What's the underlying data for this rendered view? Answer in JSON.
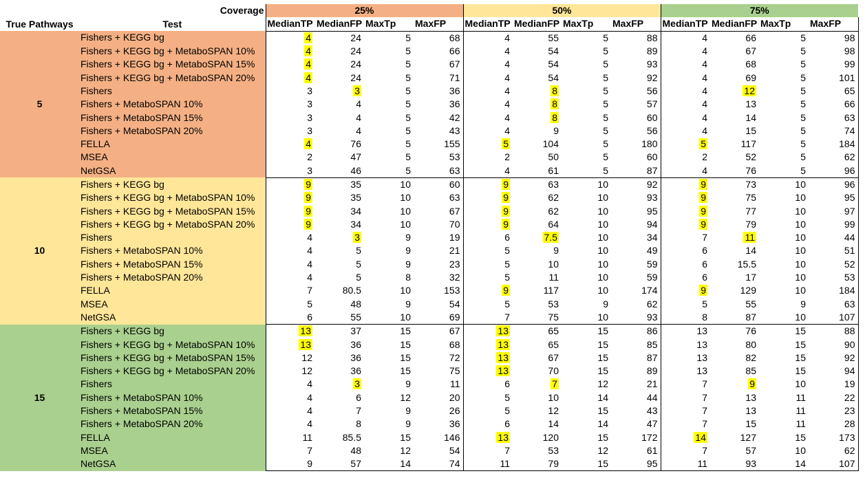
{
  "coverage_label": "Coverage",
  "coverages": [
    "25%",
    "50%",
    "75%"
  ],
  "col_true_pathways": "True Pathways",
  "col_test": "Test",
  "metric_headers": [
    "MedianTP",
    "MedianFP",
    "MaxTp",
    "MaxFP"
  ],
  "colors": {
    "c25": "#f4b084",
    "c50": "#ffe699",
    "c75": "#a9d08e",
    "highlight": "#ffff00"
  },
  "groups": [
    {
      "label": "5",
      "color": "#f4b084",
      "rows": [
        {
          "test": "Fishers + KEGG bg",
          "v": [
            "4",
            "24",
            "5",
            "68",
            "4",
            "55",
            "5",
            "88",
            "4",
            "66",
            "5",
            "98"
          ],
          "h": [
            0
          ]
        },
        {
          "test": "Fishers + KEGG bg + MetaboSPAN 10%",
          "v": [
            "4",
            "24",
            "5",
            "66",
            "4",
            "54",
            "5",
            "89",
            "4",
            "67",
            "5",
            "98"
          ],
          "h": [
            0
          ]
        },
        {
          "test": "Fishers + KEGG bg + MetaboSPAN 15%",
          "v": [
            "4",
            "24",
            "5",
            "67",
            "4",
            "54",
            "5",
            "93",
            "4",
            "68",
            "5",
            "99"
          ],
          "h": [
            0
          ]
        },
        {
          "test": "Fishers + KEGG bg + MetaboSPAN 20%",
          "v": [
            "4",
            "24",
            "5",
            "71",
            "4",
            "54",
            "5",
            "92",
            "4",
            "69",
            "5",
            "101"
          ],
          "h": [
            0
          ]
        },
        {
          "test": "Fishers",
          "v": [
            "3",
            "3",
            "5",
            "36",
            "4",
            "8",
            "5",
            "56",
            "4",
            "12",
            "5",
            "65"
          ],
          "h": [
            1,
            5,
            9
          ]
        },
        {
          "test": "Fishers + MetaboSPAN 10%",
          "v": [
            "3",
            "4",
            "5",
            "36",
            "4",
            "8",
            "5",
            "57",
            "4",
            "13",
            "5",
            "66"
          ],
          "h": [
            5
          ]
        },
        {
          "test": "Fishers + MetaboSPAN 15%",
          "v": [
            "3",
            "4",
            "5",
            "42",
            "4",
            "8",
            "5",
            "60",
            "4",
            "14",
            "5",
            "63"
          ],
          "h": [
            5
          ]
        },
        {
          "test": "Fishers + MetaboSPAN 20%",
          "v": [
            "3",
            "4",
            "5",
            "43",
            "4",
            "9",
            "5",
            "56",
            "4",
            "15",
            "5",
            "74"
          ],
          "h": []
        },
        {
          "test": "FELLA",
          "v": [
            "4",
            "76",
            "5",
            "155",
            "5",
            "104",
            "5",
            "180",
            "5",
            "117",
            "5",
            "184"
          ],
          "h": [
            0,
            4,
            8
          ]
        },
        {
          "test": "MSEA",
          "v": [
            "2",
            "47",
            "5",
            "53",
            "2",
            "50",
            "5",
            "60",
            "2",
            "52",
            "5",
            "62"
          ],
          "h": []
        },
        {
          "test": "NetGSA",
          "v": [
            "3",
            "46",
            "5",
            "63",
            "4",
            "61",
            "5",
            "87",
            "4",
            "76",
            "5",
            "96"
          ],
          "h": []
        }
      ]
    },
    {
      "label": "10",
      "color": "#ffe699",
      "rows": [
        {
          "test": "Fishers + KEGG bg",
          "v": [
            "9",
            "35",
            "10",
            "60",
            "9",
            "63",
            "10",
            "92",
            "9",
            "73",
            "10",
            "96"
          ],
          "h": [
            0,
            4,
            8
          ]
        },
        {
          "test": "Fishers + KEGG bg + MetaboSPAN 10%",
          "v": [
            "9",
            "35",
            "10",
            "63",
            "9",
            "62",
            "10",
            "93",
            "9",
            "75",
            "10",
            "95"
          ],
          "h": [
            0,
            4,
            8
          ]
        },
        {
          "test": "Fishers + KEGG bg + MetaboSPAN 15%",
          "v": [
            "9",
            "34",
            "10",
            "67",
            "9",
            "62",
            "10",
            "95",
            "9",
            "77",
            "10",
            "97"
          ],
          "h": [
            0,
            4,
            8
          ]
        },
        {
          "test": "Fishers + KEGG bg + MetaboSPAN 20%",
          "v": [
            "9",
            "34",
            "10",
            "70",
            "9",
            "64",
            "10",
            "94",
            "9",
            "79",
            "10",
            "99"
          ],
          "h": [
            0,
            4,
            8
          ]
        },
        {
          "test": "Fishers",
          "v": [
            "4",
            "3",
            "9",
            "19",
            "6",
            "7.5",
            "10",
            "34",
            "7",
            "11",
            "10",
            "44"
          ],
          "h": [
            1,
            5,
            9
          ]
        },
        {
          "test": "Fishers + MetaboSPAN 10%",
          "v": [
            "4",
            "5",
            "9",
            "21",
            "5",
            "9",
            "10",
            "49",
            "6",
            "14",
            "10",
            "51"
          ],
          "h": []
        },
        {
          "test": "Fishers + MetaboSPAN 15%",
          "v": [
            "4",
            "5",
            "9",
            "23",
            "5",
            "10",
            "10",
            "59",
            "6",
            "15.5",
            "10",
            "52"
          ],
          "h": []
        },
        {
          "test": "Fishers + MetaboSPAN 20%",
          "v": [
            "4",
            "5",
            "8",
            "32",
            "5",
            "11",
            "10",
            "59",
            "6",
            "17",
            "10",
            "53"
          ],
          "h": []
        },
        {
          "test": "FELLA",
          "v": [
            "7",
            "80.5",
            "10",
            "153",
            "9",
            "117",
            "10",
            "174",
            "9",
            "129",
            "10",
            "184"
          ],
          "h": [
            4,
            8
          ]
        },
        {
          "test": "MSEA",
          "v": [
            "5",
            "48",
            "9",
            "54",
            "5",
            "53",
            "9",
            "62",
            "5",
            "55",
            "9",
            "63"
          ],
          "h": []
        },
        {
          "test": "NetGSA",
          "v": [
            "6",
            "55",
            "10",
            "69",
            "7",
            "75",
            "10",
            "93",
            "8",
            "87",
            "10",
            "107"
          ],
          "h": []
        }
      ]
    },
    {
      "label": "15",
      "color": "#a9d08e",
      "rows": [
        {
          "test": "Fishers + KEGG bg",
          "v": [
            "13",
            "37",
            "15",
            "67",
            "13",
            "65",
            "15",
            "86",
            "13",
            "76",
            "15",
            "88"
          ],
          "h": [
            0,
            4
          ]
        },
        {
          "test": "Fishers + KEGG bg + MetaboSPAN 10%",
          "v": [
            "13",
            "36",
            "15",
            "68",
            "13",
            "65",
            "15",
            "85",
            "13",
            "80",
            "15",
            "90"
          ],
          "h": [
            0,
            4
          ]
        },
        {
          "test": "Fishers + KEGG bg + MetaboSPAN 15%",
          "v": [
            "12",
            "36",
            "15",
            "72",
            "13",
            "67",
            "15",
            "87",
            "13",
            "82",
            "15",
            "92"
          ],
          "h": [
            4
          ]
        },
        {
          "test": "Fishers + KEGG bg + MetaboSPAN 20%",
          "v": [
            "12",
            "36",
            "15",
            "75",
            "13",
            "70",
            "15",
            "89",
            "13",
            "85",
            "15",
            "94"
          ],
          "h": [
            4
          ]
        },
        {
          "test": "Fishers",
          "v": [
            "4",
            "3",
            "9",
            "11",
            "6",
            "7",
            "12",
            "21",
            "7",
            "9",
            "10",
            "19"
          ],
          "h": [
            1,
            5,
            9
          ]
        },
        {
          "test": "Fishers + MetaboSPAN 10%",
          "v": [
            "4",
            "6",
            "12",
            "20",
            "5",
            "10",
            "14",
            "44",
            "7",
            "13",
            "11",
            "22"
          ],
          "h": []
        },
        {
          "test": "Fishers + MetaboSPAN 15%",
          "v": [
            "4",
            "7",
            "9",
            "26",
            "5",
            "12",
            "15",
            "43",
            "7",
            "13",
            "11",
            "23"
          ],
          "h": []
        },
        {
          "test": "Fishers + MetaboSPAN 20%",
          "v": [
            "4",
            "8",
            "9",
            "36",
            "6",
            "14",
            "14",
            "47",
            "7",
            "15",
            "11",
            "28"
          ],
          "h": []
        },
        {
          "test": "FELLA",
          "v": [
            "11",
            "85.5",
            "15",
            "146",
            "13",
            "120",
            "15",
            "172",
            "14",
            "127",
            "15",
            "173"
          ],
          "h": [
            4,
            8
          ]
        },
        {
          "test": "MSEA",
          "v": [
            "7",
            "48",
            "12",
            "54",
            "7",
            "53",
            "12",
            "61",
            "7",
            "57",
            "10",
            "62"
          ],
          "h": []
        },
        {
          "test": "NetGSA",
          "v": [
            "9",
            "57",
            "14",
            "74",
            "11",
            "79",
            "15",
            "95",
            "11",
            "93",
            "14",
            "107"
          ],
          "h": []
        }
      ]
    }
  ]
}
